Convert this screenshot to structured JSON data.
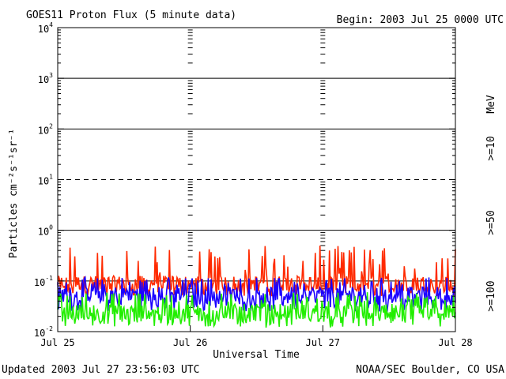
{
  "chart_data": {
    "type": "line",
    "title": "GOES11 Proton Flux (5 minute data)",
    "begin_label": "Begin: 2003 Jul 25 0000 UTC",
    "ylabel": "Particles cm⁻²s⁻¹sr⁻¹",
    "xlabel": "Universal Time",
    "y_scale": "log",
    "ylim": [
      0.01,
      10000
    ],
    "y_ticks": [
      {
        "base": "10",
        "exp": "-2",
        "value": 0.01
      },
      {
        "base": "10",
        "exp": "-1",
        "value": 0.1
      },
      {
        "base": "10",
        "exp": "0",
        "value": 1
      },
      {
        "base": "10",
        "exp": "1",
        "value": 10
      },
      {
        "base": "10",
        "exp": "2",
        "value": 100
      },
      {
        "base": "10",
        "exp": "3",
        "value": 1000
      },
      {
        "base": "10",
        "exp": "4",
        "value": 10000
      }
    ],
    "threshold_lines": [
      0.1,
      1,
      10,
      100,
      1000
    ],
    "x_ticks": [
      {
        "label": "Jul 25",
        "day": 0
      },
      {
        "label": "Jul 26",
        "day": 1
      },
      {
        "label": "Jul 27",
        "day": 2
      },
      {
        "label": "Jul 28",
        "day": 3
      }
    ],
    "xlim_days": [
      0,
      3
    ],
    "units_label": "MeV",
    "series": [
      {
        "name": ">=10",
        "color": "#ff2a00",
        "baseline": 0.09,
        "min": 0.05,
        "max": 0.5
      },
      {
        "name": ">=50",
        "color": "#1a00ff",
        "baseline": 0.055,
        "min": 0.025,
        "max": 0.12
      },
      {
        "name": ">=100",
        "color": "#22ee00",
        "baseline": 0.025,
        "min": 0.012,
        "max": 0.06
      }
    ]
  },
  "footer_left": "Updated 2003 Jul 27 23:56:03 UTC",
  "footer_right": "NOAA/SEC Boulder, CO USA"
}
